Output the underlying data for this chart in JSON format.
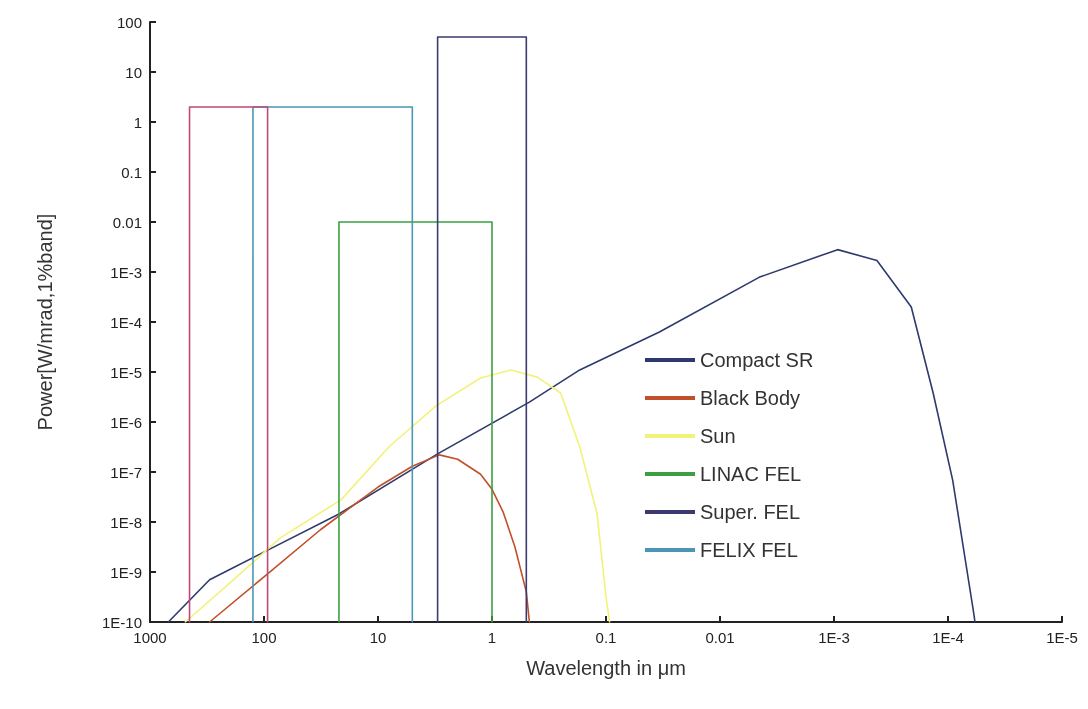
{
  "chart_data": {
    "type": "line",
    "xlabel": "Wavelength in μm",
    "ylabel": "Power[W/mrad,1%band]",
    "log": "xy",
    "grid": false,
    "legend": "right",
    "marker": "none",
    "line_style": "solid",
    "xlim": [
      1000,
      1e-05
    ],
    "xticks": [
      1000,
      100,
      10,
      1,
      0.1,
      0.01,
      {
        "value": 0.001,
        "label": "1E-3"
      },
      {
        "value": 0.0001,
        "label": "1E-4"
      },
      {
        "value": 1e-05,
        "label": "1E-5"
      }
    ],
    "ylim": [
      1e-10,
      100
    ],
    "yticks": [
      {
        "value": 1e-10,
        "label": "1E-10"
      },
      {
        "value": 1e-09,
        "label": "1E-9"
      },
      {
        "value": 1e-08,
        "label": "1E-8"
      },
      {
        "value": 1e-07,
        "label": "1E-7"
      },
      {
        "value": 1e-06,
        "label": "1E-6"
      },
      {
        "value": 1e-05,
        "label": "1E-5"
      },
      {
        "value": 0.0001,
        "label": "1E-4"
      },
      {
        "value": 0.001,
        "label": "1E-3"
      },
      0.01,
      0.1,
      1,
      10,
      100
    ],
    "series": [
      {
        "name": "Compact SR",
        "color": "#2e3a6e",
        "x": [
          690,
          300,
          112,
          22,
          3,
          0.47,
          0.17,
          0.034,
          0.0045,
          0.00093,
          0.00042,
          0.00021,
          0.000135,
          9.1e-05,
          6e-05,
          5.8e-05
        ],
        "values": [
          1e-10,
          7e-10,
          2.2e-09,
          1.45e-08,
          2.3e-07,
          2.5e-06,
          1.1e-05,
          6.3e-05,
          0.00079,
          0.0028,
          0.0017,
          0.0002,
          3.8e-06,
          6.9e-08,
          1.7e-10,
          1e-10
        ]
      },
      {
        "name": "Black Body",
        "color": "#c0502a",
        "x": [
          300,
          100,
          32,
          10,
          5,
          2.9,
          2,
          1.26,
          1,
          0.8,
          0.63,
          0.5,
          0.47
        ],
        "values": [
          1e-10,
          8e-10,
          7e-09,
          5e-08,
          1.3e-07,
          2.2e-07,
          1.8e-07,
          9e-08,
          4.5e-08,
          1.6e-08,
          3.2e-09,
          4e-10,
          1e-10
        ]
      },
      {
        "name": "Sun",
        "color": "#f2f27a",
        "x": [
          490,
          200,
          72,
          21,
          8,
          3.1,
          1.26,
          0.68,
          0.4,
          0.25,
          0.17,
          0.12,
          0.1,
          0.093
        ],
        "values": [
          1e-10,
          6e-10,
          4.8e-09,
          2.8e-08,
          3.2e-07,
          2.1e-06,
          7.6e-06,
          1.1e-05,
          7.9e-06,
          3.8e-06,
          3.2e-07,
          1.5e-08,
          3.2e-10,
          1e-10
        ]
      },
      {
        "name": "LINAC FEL",
        "color": "#3aa040",
        "x": [
          22,
          22,
          1,
          1
        ],
        "values": [
          1e-10,
          0.01,
          0.01,
          1e-10
        ]
      },
      {
        "name": "Super. FEL",
        "color": "#3a3a70",
        "x": [
          3,
          3,
          0.5,
          0.5
        ],
        "values": [
          1e-10,
          50,
          50,
          1e-10
        ]
      },
      {
        "name": "FELIX FEL",
        "color": "#4a96b4",
        "x": [
          125,
          125,
          5,
          5
        ],
        "values": [
          1e-10,
          2,
          2,
          1e-10
        ]
      },
      {
        "color": "#c04878",
        "x": [
          450,
          450,
          93,
          93
        ],
        "values": [
          1e-10,
          2,
          2,
          1e-10
        ]
      }
    ]
  }
}
